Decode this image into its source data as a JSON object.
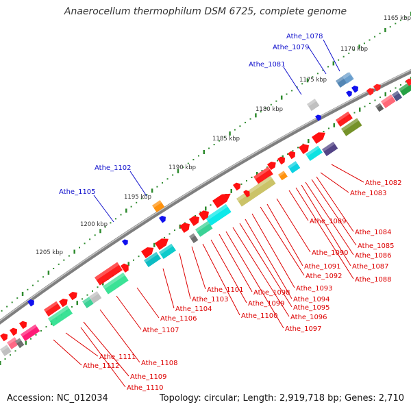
{
  "title": "Anaerocellum thermophilum DSM 6725, complete genome",
  "accession": "Accession: NC_012034",
  "summary": "Topology: circular; Length: 2,919,718 bp; Genes: 2,710",
  "colors": {
    "backbone": "#7f7f7f",
    "tick_dot": "#2e8b2e",
    "forward_label": "#1010cc",
    "reverse_label": "#dd0000"
  },
  "kbp_labels": [
    "1165 kbp",
    "1170 kbp",
    "1175 kbp",
    "1180 kbp",
    "1185 kbp",
    "1190 kbp",
    "1195 kbp",
    "1200 kbp",
    "1205 kbp"
  ],
  "forward_genes": [
    "Athe_1078",
    "Athe_1079",
    "Athe_1081",
    "Athe_1102",
    "Athe_1105"
  ],
  "reverse_genes": [
    "Athe_1082",
    "Athe_1083",
    "Athe_1084",
    "Athe_1085",
    "Athe_1086",
    "Athe_1087",
    "Athe_1088",
    "Athe_1089",
    "Athe_1090",
    "Athe_1091",
    "Athe_1092",
    "Athe_1093",
    "Athe_1094",
    "Athe_1095",
    "Athe_1096",
    "Athe_1097",
    "Athe_1098",
    "Athe_1099",
    "Athe_1100",
    "Athe_1101",
    "Athe_1103",
    "Athe_1104",
    "Athe_1106",
    "Athe_1107",
    "Athe_1108",
    "Athe_1109",
    "Athe_1110",
    "Athe_1111",
    "Athe_1112"
  ]
}
